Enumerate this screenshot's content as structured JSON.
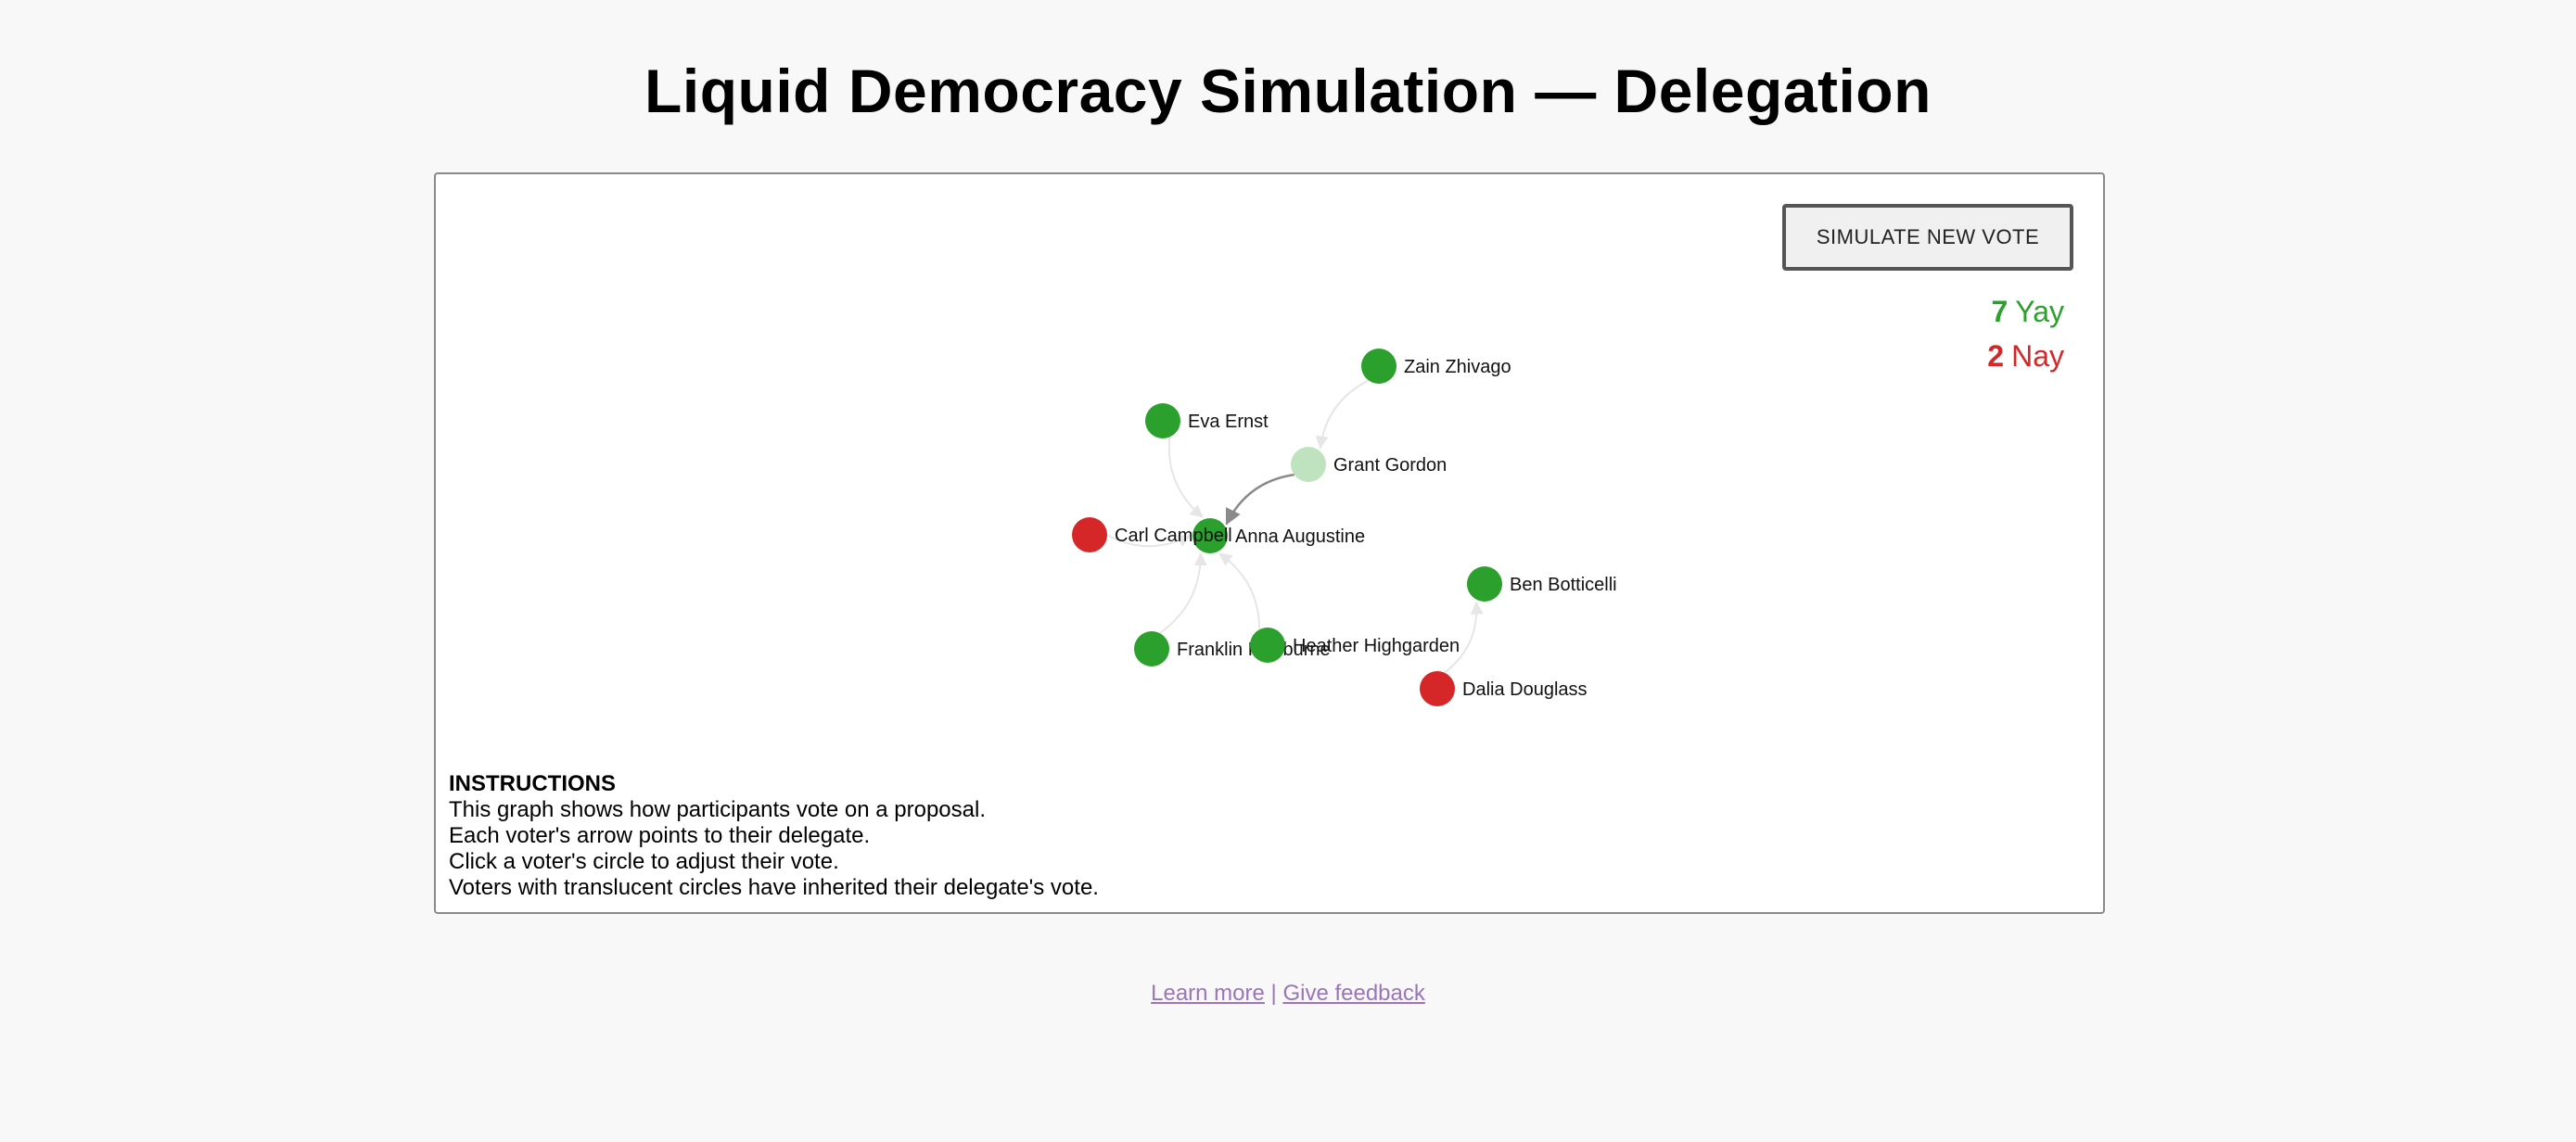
{
  "header": {
    "title": "Liquid Democracy Simulation — Delegation"
  },
  "controls": {
    "simulate_label": "SIMULATE NEW VOTE"
  },
  "tally": {
    "yay_count": "7",
    "yay_label": "Yay",
    "nay_count": "2",
    "nay_label": "Nay",
    "yay_color": "#2ca02c",
    "nay_color": "#d62728"
  },
  "graph": {
    "voters": [
      {
        "id": "anna",
        "name": "Anna Augustine",
        "vote": "yay",
        "inherited": false
      },
      {
        "id": "ben",
        "name": "Ben Botticelli",
        "vote": "yay",
        "inherited": false
      },
      {
        "id": "carl",
        "name": "Carl Campbell",
        "vote": "nay",
        "inherited": false
      },
      {
        "id": "dalia",
        "name": "Dalia Douglass",
        "vote": "nay",
        "inherited": false
      },
      {
        "id": "eva",
        "name": "Eva Ernst",
        "vote": "yay",
        "inherited": false
      },
      {
        "id": "franklin",
        "name": "Franklin Fishburne",
        "vote": "yay",
        "inherited": false
      },
      {
        "id": "grant",
        "name": "Grant Gordon",
        "vote": "yay",
        "inherited": true
      },
      {
        "id": "heather",
        "name": "Heather Highgarden",
        "vote": "yay",
        "inherited": false
      },
      {
        "id": "zain",
        "name": "Zain Zhivago",
        "vote": "yay",
        "inherited": false
      }
    ],
    "delegations": [
      {
        "from": "grant",
        "to": "anna",
        "highlight": true
      },
      {
        "from": "zain",
        "to": "grant",
        "highlight": false
      },
      {
        "from": "eva",
        "to": "anna",
        "highlight": false
      },
      {
        "from": "carl",
        "to": "anna",
        "highlight": false
      },
      {
        "from": "franklin",
        "to": "anna",
        "highlight": false
      },
      {
        "from": "heather",
        "to": "anna",
        "highlight": false
      },
      {
        "from": "dalia",
        "to": "ben",
        "highlight": false
      }
    ]
  },
  "instructions": {
    "heading": "INSTRUCTIONS",
    "lines": [
      "This graph shows how participants vote on a proposal.",
      "Each voter's arrow points to their delegate.",
      "Click a voter's circle to adjust their vote.",
      "Voters with translucent circles have inherited their delegate's vote."
    ]
  },
  "footer": {
    "learn_more": "Learn more",
    "separator": "|",
    "give_feedback": "Give feedback"
  }
}
